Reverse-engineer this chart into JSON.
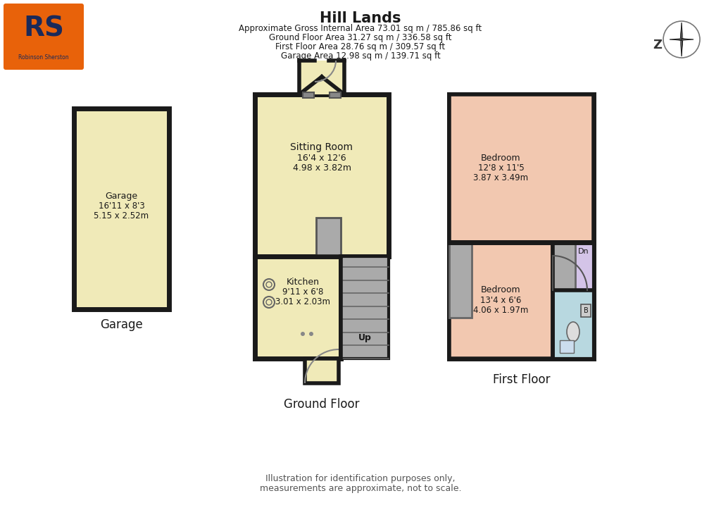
{
  "title": "Hill Lands",
  "subtitle_lines": [
    "Approximate Gross Internal Area 73.01 sq m / 785.86 sq ft",
    "Ground Floor Area 31.27 sq m / 336.58 sq ft",
    "First Floor Area 28.76 sq m / 309.57 sq ft",
    "Garage Area 12.98 sq m / 139.71 sq ft"
  ],
  "footer_line1": "Illustration for identification purposes only,",
  "footer_line2": "measurements are approximate, not to scale.",
  "garage_label": "Garage",
  "ground_floor_label": "Ground Floor",
  "first_floor_label": "First Floor",
  "room_colors": {
    "yellow": "#F0EAB8",
    "salmon": "#F2C8B0",
    "lavender": "#D4C4E8",
    "light_blue": "#B8D8E0",
    "gray": "#999999",
    "dark_gray": "#555555",
    "wall_color": "#1a1a1a",
    "background": "#ffffff",
    "stair_gray": "#AAAAAA"
  },
  "logo_color": "#E8620A",
  "logo_text_color": "#1a2a5a"
}
